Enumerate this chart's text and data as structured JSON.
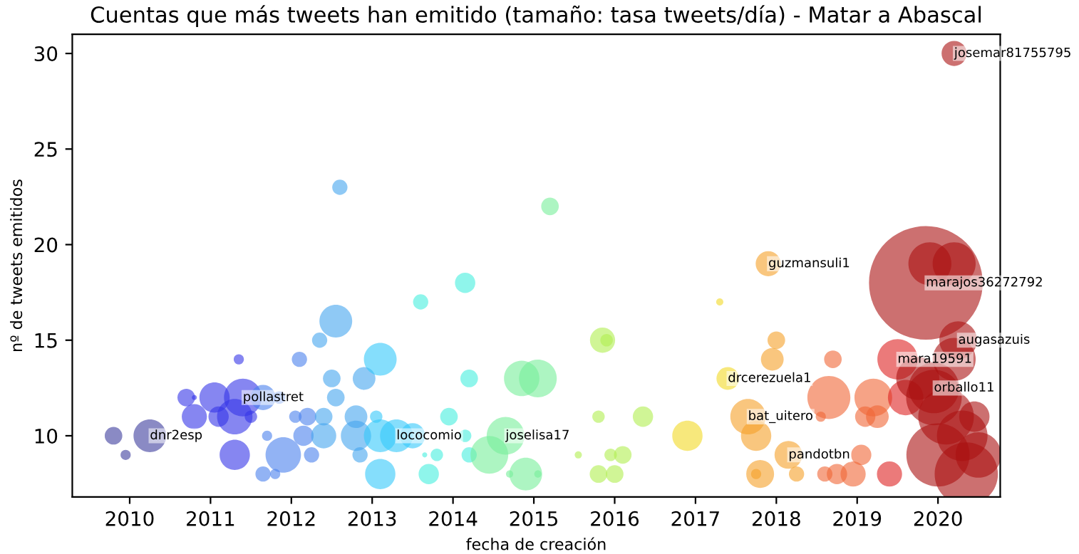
{
  "chart_data": {
    "type": "bubble",
    "title": "Cuentas que más tweets han emitido (tamaño: tasa tweets/día) - Matar a Abascal",
    "xlabel": "fecha de creación",
    "ylabel": "nº de tweets emitidos",
    "xlim": [
      2009.29,
      2020.77
    ],
    "xticks": [
      2010,
      2011,
      2012,
      2013,
      2014,
      2015,
      2016,
      2017,
      2018,
      2019,
      2020
    ],
    "ylim": [
      6.8,
      31
    ],
    "yticks": [
      10,
      15,
      20,
      25,
      30
    ],
    "grid": false,
    "legend": false,
    "series": [
      {
        "color": "#3c3c9c",
        "x": [
          2009.8,
          2009.95,
          2010.25
        ],
        "values": [
          10,
          9,
          10
        ],
        "sizes": [
          0.024,
          0.008,
          0.083
        ]
      },
      {
        "color": "#3535e8",
        "x": [
          2010.7,
          2010.8,
          2010.8,
          2011.05,
          2011.1,
          2011.3,
          2011.4,
          2011.35,
          2011.5,
          2011.3
        ],
        "values": [
          12,
          12,
          11,
          12,
          11,
          11,
          12,
          14,
          11,
          9
        ],
        "sizes": [
          0.024,
          0.002,
          0.049,
          0.071,
          0.032,
          0.097,
          0.11,
          0.008,
          0.012,
          0.071
        ]
      },
      {
        "color": "#4a80ec",
        "x": [
          2011.65,
          2011.85,
          2011.9,
          2011.7,
          2011.65,
          2011.8,
          2012.1,
          2012.05,
          2012.2,
          2012.15,
          2012.25
        ],
        "values": [
          12,
          12,
          9,
          10,
          8,
          8,
          14,
          11,
          11,
          10,
          9
        ],
        "sizes": [
          0.049,
          0.012,
          0.097,
          0.008,
          0.018,
          0.008,
          0.018,
          0.012,
          0.024,
          0.032,
          0.018
        ]
      },
      {
        "color": "#45a5ef",
        "x": [
          2012.35,
          2012.4,
          2012.4,
          2012.5,
          2012.55,
          2012.55,
          2012.6,
          2012.8,
          2012.8,
          2012.85,
          2012.9
        ],
        "values": [
          15,
          11,
          10,
          13,
          12,
          16,
          23,
          11,
          10,
          9,
          13
        ],
        "sizes": [
          0.018,
          0.024,
          0.049,
          0.024,
          0.024,
          0.083,
          0.018,
          0.04,
          0.071,
          0.018,
          0.04
        ]
      },
      {
        "color": "#33c8fa",
        "x": [
          2013.1,
          2013.05,
          2013.1,
          2013.1,
          2013.3,
          2013.5
        ],
        "values": [
          14,
          11,
          10,
          8,
          10,
          10
        ],
        "sizes": [
          0.083,
          0.012,
          0.083,
          0.071,
          0.083,
          0.049
        ]
      },
      {
        "color": "#44eedd",
        "x": [
          2013.6,
          2013.65,
          2013.8,
          2013.7,
          2013.95,
          2014.15,
          2014.2,
          2014.15,
          2014.2
        ],
        "values": [
          17,
          9,
          9,
          8,
          11,
          18,
          13,
          10,
          9
        ],
        "sizes": [
          0.018,
          0.002,
          0.012,
          0.032,
          0.024,
          0.032,
          0.024,
          0.012,
          0.018
        ]
      },
      {
        "color": "#77ee99",
        "x": [
          2014.45,
          2014.65,
          2014.85,
          2015.05,
          2014.9,
          2014.7,
          2015.05,
          2015.2
        ],
        "values": [
          9,
          10,
          13,
          13,
          8,
          8,
          8,
          22
        ],
        "sizes": [
          0.11,
          0.11,
          0.097,
          0.11,
          0.083,
          0.004,
          0.004,
          0.024
        ]
      },
      {
        "color": "#b0ee50",
        "x": [
          2015.85,
          2015.9,
          2015.8,
          2015.8,
          2016.0,
          2016.1,
          2015.95,
          2015.55,
          2016.35
        ],
        "values": [
          15,
          15,
          11,
          8,
          8,
          9,
          9,
          9,
          11
        ],
        "sizes": [
          0.049,
          0.012,
          0.012,
          0.024,
          0.024,
          0.024,
          0.012,
          0.004,
          0.032
        ]
      },
      {
        "color": "#f2d825",
        "x": [
          2016.9,
          2017.3,
          2017.4
        ],
        "values": [
          10,
          17,
          13
        ],
        "sizes": [
          0.071,
          0.004,
          0.04
        ]
      },
      {
        "color": "#f5a028",
        "x": [
          2017.65,
          2017.75,
          2017.9,
          2017.95,
          2018.0,
          2017.8,
          2017.75,
          2018.15,
          2018.25
        ],
        "values": [
          11,
          10,
          19,
          14,
          15,
          8,
          8,
          9,
          8
        ],
        "sizes": [
          0.097,
          0.071,
          0.049,
          0.04,
          0.024,
          0.06,
          0.008,
          0.06,
          0.018
        ]
      },
      {
        "color": "#f06535",
        "x": [
          2018.55,
          2018.65,
          2018.7,
          2018.6,
          2018.75,
          2018.95,
          2019.05,
          2019.1,
          2019.2,
          2019.25
        ],
        "values": [
          11,
          12,
          14,
          8,
          8,
          8,
          9,
          11,
          12,
          11
        ],
        "sizes": [
          0.008,
          0.143,
          0.024,
          0.018,
          0.032,
          0.049,
          0.032,
          0.032,
          0.11,
          0.04
        ]
      },
      {
        "color": "#dd2222",
        "x": [
          2019.4,
          2019.5,
          2019.6
        ],
        "values": [
          8,
          14,
          12
        ],
        "sizes": [
          0.049,
          0.126,
          0.097
        ]
      },
      {
        "color": "#aa1010",
        "x": [
          2019.85,
          2019.75,
          2019.95,
          2019.9,
          2020.2,
          2020.2,
          2020.25,
          2019.95,
          2020.1,
          2020.3,
          2020.0,
          2020.35,
          2020.2,
          2020.45,
          2020.5
        ],
        "values": [
          18,
          13,
          12,
          19,
          19,
          14,
          15,
          12.5,
          11,
          10,
          9,
          8,
          30,
          11,
          9
        ],
        "sizes": [
          1,
          0.143,
          0.239,
          0.143,
          0.143,
          0.143,
          0.11,
          0.198,
          0.239,
          0.198,
          0.309,
          0.309,
          0.049,
          0.071,
          0.16
        ]
      }
    ],
    "annotations": [
      {
        "text": "dnr2esp",
        "x": 2010.25,
        "y": 10
      },
      {
        "text": "pollastret",
        "x": 2011.4,
        "y": 12
      },
      {
        "text": "lococomio",
        "x": 2013.3,
        "y": 10
      },
      {
        "text": "joselisa17",
        "x": 2014.65,
        "y": 10
      },
      {
        "text": "drcerezuela1",
        "x": 2017.4,
        "y": 13
      },
      {
        "text": "guzmansuli1",
        "x": 2017.9,
        "y": 19
      },
      {
        "text": "bat_uitero",
        "x": 2017.65,
        "y": 11
      },
      {
        "text": "pandotbn",
        "x": 2018.15,
        "y": 9
      },
      {
        "text": "mara19591",
        "x": 2019.5,
        "y": 14
      },
      {
        "text": "marajos36272792",
        "x": 2019.85,
        "y": 18
      },
      {
        "text": "augasazuis",
        "x": 2020.25,
        "y": 15
      },
      {
        "text": "orballo11",
        "x": 2019.95,
        "y": 12.5
      },
      {
        "text": "josemar81755795",
        "x": 2020.2,
        "y": 30
      }
    ]
  }
}
